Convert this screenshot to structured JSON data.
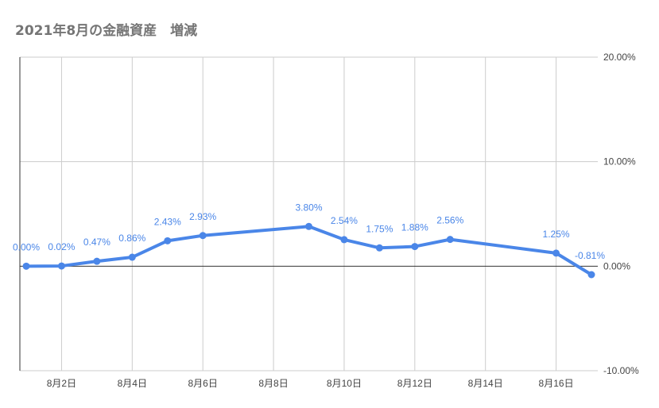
{
  "title": "2021年8月の金融資産　増減",
  "chart_data": {
    "type": "line",
    "title": "2021年8月の金融資産　増減",
    "x_tick_labels": [
      {
        "day": 2,
        "label": "8月2日"
      },
      {
        "day": 4,
        "label": "8月4日"
      },
      {
        "day": 6,
        "label": "8月6日"
      },
      {
        "day": 8,
        "label": "8月8日"
      },
      {
        "day": 10,
        "label": "8月10日"
      },
      {
        "day": 12,
        "label": "8月12日"
      },
      {
        "day": 14,
        "label": "8月14日"
      },
      {
        "day": 16,
        "label": "8月16日"
      }
    ],
    "xlim": [
      1,
      17
    ],
    "ylim": [
      -10,
      20
    ],
    "y_ticks": [
      {
        "value": 20,
        "label": "20.00%"
      },
      {
        "value": 10,
        "label": "10.00%"
      },
      {
        "value": 0,
        "label": "0.00%"
      },
      {
        "value": -10,
        "label": "-10.00%"
      }
    ],
    "y_axis_side": "right",
    "grid": true,
    "color": "#4a86e8",
    "series": [
      {
        "points": [
          {
            "day": 1,
            "value": 0.0,
            "label": "0.00%"
          },
          {
            "day": 2,
            "value": 0.02,
            "label": "0.02%"
          },
          {
            "day": 3,
            "value": 0.47,
            "label": "0.47%"
          },
          {
            "day": 4,
            "value": 0.86,
            "label": "0.86%"
          },
          {
            "day": 5,
            "value": 2.43,
            "label": "2.43%"
          },
          {
            "day": 6,
            "value": 2.93,
            "label": "2.93%"
          },
          {
            "day": 9,
            "value": 3.8,
            "label": "3.80%"
          },
          {
            "day": 10,
            "value": 2.54,
            "label": "2.54%"
          },
          {
            "day": 11,
            "value": 1.75,
            "label": "1.75%"
          },
          {
            "day": 12,
            "value": 1.88,
            "label": "1.88%"
          },
          {
            "day": 13,
            "value": 2.56,
            "label": "2.56%"
          },
          {
            "day": 16,
            "value": 1.25,
            "label": "1.25%"
          },
          {
            "day": 17,
            "value": -0.81,
            "label": "-0.81%"
          }
        ]
      }
    ]
  }
}
